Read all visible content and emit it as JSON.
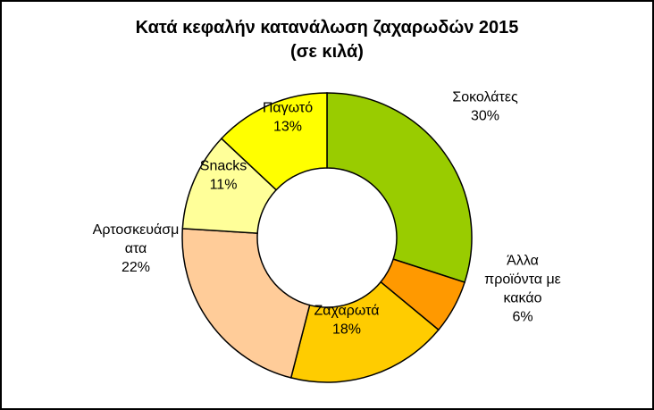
{
  "chart_data": {
    "type": "pie",
    "donut": true,
    "title": "Κατά κεφαλήν κατανάλωση ζαχαρωδών 2015",
    "subtitle": "(σε κιλά)",
    "legend": "none",
    "slices": [
      {
        "label": "Σοκολάτες",
        "value": 30,
        "value_text": "30%",
        "color": "#99CC00",
        "label_lines": [
          "Σοκολάτες",
          "30%"
        ]
      },
      {
        "label": "Άλλα προϊόντα με κακάο",
        "value": 6,
        "value_text": "6%",
        "color": "#FF9900",
        "label_lines": [
          "Άλλα",
          "προϊόντα με",
          "κακάο",
          "6%"
        ]
      },
      {
        "label": "Ζαχαρωτά",
        "value": 18,
        "value_text": "18%",
        "color": "#FFCC00",
        "label_lines": [
          "Ζαχαρωτά",
          "18%"
        ]
      },
      {
        "label": "Αρτοσκευάσματα",
        "value": 22,
        "value_text": "22%",
        "color": "#FFCC99",
        "label_lines": [
          "Αρτοσκευάσμ",
          "ατα",
          "22%"
        ]
      },
      {
        "label": "Snacks",
        "value": 11,
        "value_text": "11%",
        "color": "#FFFF99",
        "label_lines": [
          "Snacks",
          "11%"
        ]
      },
      {
        "label": "Παγωτό",
        "value": 13,
        "value_text": "13%",
        "color": "#FFFF00",
        "label_lines": [
          "Παγωτό",
          "13%"
        ]
      }
    ]
  }
}
